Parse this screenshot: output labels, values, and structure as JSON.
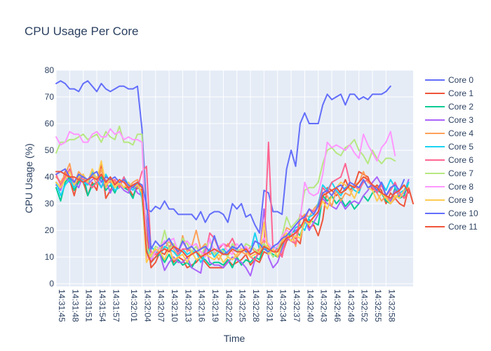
{
  "chart_data": {
    "type": "line",
    "title": "CPU Usage Per Core",
    "xlabel": "Time",
    "ylabel": "CPU Usage (%)",
    "ylim": [
      -1,
      80
    ],
    "yticks": [
      0,
      10,
      20,
      30,
      40,
      50,
      60,
      70,
      80
    ],
    "grid": true,
    "legend_position": "right",
    "start_time": "14:31:45",
    "x_tick_labels": [
      "14:31:45",
      "14:31:48",
      "14:31:51",
      "14:31:54",
      "14:31:57",
      "14:32:01",
      "14:32:04",
      "14:32:07",
      "14:32:10",
      "14:32:13",
      "14:32:16",
      "14:32:19",
      "14:32:22",
      "14:32:25",
      "14:32:28",
      "14:32:31",
      "14:32:34",
      "14:32:37",
      "14:32:40",
      "14:32:43",
      "14:32:46",
      "14:32:49",
      "14:32:52",
      "14:32:55",
      "14:32:58"
    ],
    "series": [
      {
        "name": "Core 0",
        "color": "#636efa",
        "values": [
          75,
          76,
          75,
          73,
          73,
          72,
          75,
          76,
          74,
          72,
          75,
          73,
          72,
          73,
          74,
          74,
          73,
          73,
          74,
          58,
          28,
          27,
          29,
          28,
          31,
          28,
          28,
          26,
          26,
          26,
          26,
          24,
          27,
          23,
          26,
          27,
          27,
          26,
          23,
          30,
          28,
          30,
          25,
          26,
          22,
          19,
          35,
          34,
          27,
          27,
          26,
          43,
          50,
          44,
          60,
          64,
          60,
          60,
          60,
          67,
          71,
          69,
          70,
          71,
          67,
          71,
          71,
          69,
          70,
          69,
          71,
          71,
          71,
          72,
          74
        ]
      },
      {
        "name": "Core 1",
        "color": "#ef553b",
        "values": [
          38,
          36,
          42,
          39,
          33,
          40,
          38,
          33,
          38,
          35,
          45,
          32,
          35,
          38,
          38,
          36,
          36,
          33,
          36,
          35,
          20,
          6,
          8,
          12,
          11,
          14,
          8,
          10,
          9,
          6,
          7,
          8,
          10,
          8,
          6,
          6,
          6,
          6,
          9,
          7,
          8,
          9,
          11,
          7,
          9,
          8,
          12,
          11,
          13,
          10,
          11,
          16,
          18,
          17,
          15,
          26,
          21,
          22,
          18,
          24,
          36,
          35,
          33,
          35,
          39,
          35,
          37,
          42,
          41,
          40,
          35,
          37,
          35,
          30,
          34,
          32,
          30,
          29,
          36,
          30
        ]
      },
      {
        "name": "Core 2",
        "color": "#00cc96",
        "values": [
          36,
          31,
          38,
          40,
          35,
          38,
          41,
          33,
          37,
          38,
          40,
          35,
          37,
          34,
          38,
          36,
          35,
          32,
          38,
          33,
          14,
          8,
          10,
          11,
          8,
          11,
          7,
          9,
          7,
          8,
          6,
          9,
          10,
          9,
          7,
          8,
          8,
          7,
          9,
          6,
          10,
          7,
          9,
          8,
          10,
          9,
          14,
          12,
          11,
          10,
          14,
          17,
          19,
          20,
          18,
          23,
          24,
          23,
          22,
          33,
          31,
          33,
          30,
          32,
          29,
          31,
          28,
          30,
          33,
          31,
          34,
          35,
          34,
          31,
          30,
          36,
          32,
          33,
          38
        ]
      },
      {
        "name": "Core 3",
        "color": "#ab63fa",
        "values": [
          37,
          35,
          40,
          38,
          38,
          36,
          41,
          37,
          39,
          40,
          36,
          39,
          34,
          38,
          37,
          35,
          34,
          37,
          34,
          33,
          24,
          8,
          13,
          11,
          5,
          8,
          10,
          8,
          8,
          10,
          6,
          5,
          4,
          14,
          8,
          7,
          7,
          6,
          8,
          10,
          9,
          8,
          6,
          3,
          9,
          12,
          28,
          10,
          6,
          8,
          13,
          17,
          16,
          20,
          21,
          24,
          20,
          23,
          26,
          32,
          30,
          29,
          28,
          31,
          28,
          30,
          31,
          30,
          33,
          35,
          38,
          40,
          37,
          33,
          31,
          35,
          33,
          34,
          39
        ]
      },
      {
        "name": "Core 4",
        "color": "#ffa15a",
        "values": [
          40,
          38,
          41,
          45,
          37,
          42,
          40,
          38,
          41,
          37,
          43,
          36,
          40,
          38,
          37,
          39,
          36,
          38,
          39,
          32,
          12,
          10,
          11,
          14,
          13,
          16,
          13,
          10,
          18,
          12,
          14,
          20,
          13,
          15,
          11,
          12,
          9,
          12,
          15,
          12,
          10,
          12,
          11,
          14,
          12,
          13,
          17,
          14,
          12,
          12,
          16,
          21,
          20,
          14,
          24,
          26,
          25,
          28,
          30,
          34,
          33,
          29,
          35,
          31,
          34,
          33,
          37,
          38,
          42,
          38,
          37,
          34,
          31,
          33,
          30,
          32,
          34,
          35,
          36
        ]
      },
      {
        "name": "Core 5",
        "color": "#19d3f3",
        "values": [
          38,
          33,
          37,
          39,
          36,
          41,
          38,
          37,
          42,
          39,
          36,
          41,
          38,
          35,
          36,
          40,
          37,
          35,
          38,
          32,
          10,
          14,
          12,
          11,
          14,
          13,
          12,
          10,
          13,
          11,
          12,
          12,
          8,
          11,
          13,
          10,
          12,
          13,
          11,
          14,
          12,
          13,
          12,
          12,
          19,
          13,
          15,
          11,
          14,
          13,
          15,
          18,
          19,
          21,
          22,
          20,
          25,
          26,
          30,
          37,
          35,
          38,
          35,
          33,
          36,
          37,
          35,
          34,
          39,
          36,
          37,
          35,
          38,
          35,
          39,
          36,
          34,
          35,
          38
        ]
      },
      {
        "name": "Core 6",
        "color": "#ff6692",
        "values": [
          41,
          37,
          40,
          43,
          38,
          40,
          39,
          38,
          36,
          38,
          41,
          38,
          38,
          39,
          36,
          40,
          35,
          37,
          36,
          42,
          44,
          12,
          11,
          12,
          16,
          14,
          15,
          11,
          13,
          13,
          12,
          14,
          12,
          11,
          19,
          17,
          13,
          15,
          14,
          17,
          13,
          12,
          14,
          10,
          9,
          13,
          14,
          53,
          12,
          13,
          10,
          18,
          16,
          15,
          26,
          24,
          28,
          27,
          29,
          36,
          34,
          38,
          39,
          40,
          45,
          38,
          37,
          35,
          38,
          39,
          36,
          34,
          37,
          33,
          35,
          38,
          34,
          32,
          35
        ]
      },
      {
        "name": "Core 7",
        "color": "#b6e880",
        "values": [
          49,
          53,
          53,
          54,
          54,
          55,
          56,
          54,
          55,
          56,
          53,
          57,
          55,
          54,
          59,
          53,
          53,
          52,
          56,
          56,
          14,
          10,
          14,
          13,
          20,
          13,
          15,
          12,
          17,
          15,
          12,
          14,
          10,
          14,
          16,
          11,
          13,
          12,
          10,
          15,
          13,
          12,
          15,
          14,
          13,
          11,
          15,
          13,
          10,
          12,
          18,
          25,
          21,
          23,
          25,
          35,
          36,
          36,
          38,
          45,
          50,
          51,
          49,
          48,
          51,
          52,
          54,
          50,
          48,
          45,
          50,
          47,
          45,
          47,
          47,
          46
        ]
      },
      {
        "name": "Core 8",
        "color": "#ff97ff",
        "values": [
          55,
          52,
          53,
          57,
          56,
          56,
          53,
          53,
          56,
          57,
          55,
          55,
          58,
          56,
          57,
          54,
          55,
          54,
          54,
          53,
          10,
          9,
          12,
          14,
          16,
          16,
          17,
          12,
          15,
          16,
          14,
          15,
          12,
          10,
          17,
          12,
          14,
          15,
          12,
          11,
          15,
          13,
          14,
          12,
          16,
          15,
          17,
          15,
          13,
          14,
          18,
          20,
          19,
          22,
          24,
          38,
          34,
          33,
          34,
          41,
          53,
          51,
          52,
          51,
          50,
          52,
          49,
          47,
          56,
          52,
          49,
          46,
          51,
          53,
          57,
          48
        ]
      },
      {
        "name": "Core 9",
        "color": "#fecb52",
        "values": [
          38,
          36,
          39,
          42,
          37,
          40,
          41,
          38,
          43,
          39,
          46,
          37,
          39,
          36,
          38,
          36,
          38,
          36,
          37,
          34,
          8,
          11,
          13,
          12,
          9,
          13,
          9,
          10,
          11,
          8,
          12,
          9,
          10,
          11,
          10,
          9,
          11,
          8,
          10,
          9,
          11,
          13,
          12,
          10,
          11,
          12,
          23,
          11,
          13,
          10,
          15,
          19,
          16,
          18,
          17,
          24,
          22,
          25,
          27,
          31,
          28,
          33,
          36,
          38,
          37,
          35,
          32,
          36,
          39,
          36,
          35,
          31,
          34,
          32,
          30,
          33,
          32,
          35
        ]
      },
      {
        "name": "Core 10",
        "color": "#636efa",
        "values": [
          41,
          42,
          43,
          40,
          38,
          41,
          40,
          39,
          41,
          42,
          38,
          40,
          39,
          40,
          38,
          39,
          37,
          36,
          38,
          37,
          30,
          13,
          16,
          14,
          15,
          17,
          14,
          12,
          16,
          13,
          14,
          12,
          13,
          14,
          12,
          18,
          13,
          11,
          12,
          14,
          13,
          15,
          12,
          12,
          16,
          15,
          13,
          12,
          14,
          15,
          17,
          18,
          20,
          22,
          24,
          25,
          28,
          26,
          29,
          34,
          35,
          33,
          36,
          37,
          35,
          38,
          37,
          36,
          39,
          36,
          37,
          35,
          38,
          33,
          36,
          37,
          35,
          39
        ]
      },
      {
        "name": "Core 11",
        "color": "#ef553b",
        "values": [
          42,
          42,
          41,
          40,
          40,
          39,
          38,
          39,
          40,
          39,
          41,
          38,
          40,
          37,
          39,
          38,
          36,
          37,
          38,
          36,
          12,
          8,
          10,
          12,
          13,
          12,
          14,
          13,
          12,
          10,
          11,
          12,
          10,
          11,
          12,
          13,
          12,
          11,
          11,
          13,
          12,
          12,
          13,
          11,
          12,
          11,
          14,
          13,
          12,
          12,
          15,
          17,
          18,
          19,
          21,
          24,
          23,
          25,
          27,
          33,
          34,
          35,
          36,
          34,
          35,
          37,
          36,
          38,
          40,
          39,
          37,
          36,
          34,
          33,
          32,
          34,
          35,
          37,
          34
        ]
      }
    ]
  }
}
